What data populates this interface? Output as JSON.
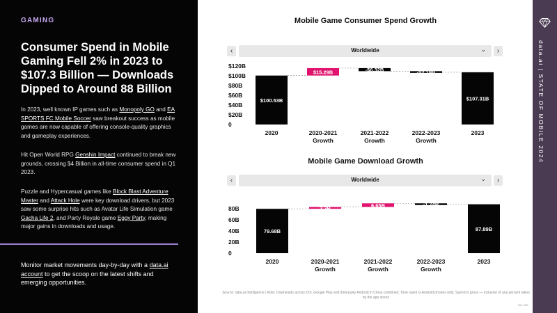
{
  "left_panel": {
    "section_tag": "GAMING",
    "headline": "Consumer Spend in Mobile Gaming Fell 2% in 2023 to $107.3 Billion — Downloads Dipped to Around 88 Billion",
    "p1_a": "In 2023, well known IP games such as ",
    "p1_link1": "Monopoly GO",
    "p1_b": " and ",
    "p1_link2": "EA SPORTS FC Mobile Soccer",
    "p1_c": " saw breakout success as mobile games are now capable of offering console-quality graphics and gameplay experiences.",
    "p2_a": "Hit Open World RPG ",
    "p2_link1": "Genshin Impact",
    "p2_b": " continued to break new grounds, crossing $4 Billion in all-time consumer spend in Q1 2023.",
    "p3_a": "Puzzle and Hypercasual games like ",
    "p3_link1": "Block Blast Adventure Master",
    "p3_b": " and ",
    "p3_link2": "Attack Hole",
    "p3_c": " were key download drivers, but 2023 saw some surprise hits such as Avatar Life Simulation game ",
    "p3_link3": "Gacha Life 2",
    "p3_d": ", and Party Royale game ",
    "p3_link4": "Eggy Party",
    "p3_e": ", making major gains in downloads and usage.",
    "cta_a": "Monitor market movements day-by-day with a ",
    "cta_link": "data.ai account",
    "cta_b": " to get the scoop on the latest shifts and emerging opportunities."
  },
  "rail": {
    "text": "data.ai | STATE OF MOBILE 2024",
    "logo_icon": "diamond-logo-icon"
  },
  "colors": {
    "accent": "#e0146e",
    "bar": "#050505",
    "rail": "#4a3a52",
    "section_tag": "#c9a9f5"
  },
  "spend_chart": {
    "title": "Mobile Game Consumer Spend Growth",
    "selector_value": "Worldwide",
    "prev_icon": "chevron-left-icon",
    "next_icon": "chevron-right-icon"
  },
  "download_chart": {
    "title": "Mobile Game Download Growth",
    "selector_value": "Worldwide",
    "prev_icon": "chevron-left-icon",
    "next_icon": "chevron-right-icon"
  },
  "chart_data": [
    {
      "type": "waterfall",
      "title": "Mobile Game Consumer Spend Growth",
      "y_ticks": [
        "0",
        "$20B",
        "$40B",
        "$60B",
        "$80B",
        "$100B",
        "$120B"
      ],
      "ylim": [
        0,
        120
      ],
      "categories": [
        "2020",
        "2020-2021 Growth",
        "2021-2022 Growth",
        "2022-2023 Growth",
        "2023"
      ],
      "steps": [
        {
          "kind": "total",
          "value": 100.53,
          "label": "$100.53B"
        },
        {
          "kind": "delta",
          "value": 15.29,
          "label": "$15.29B"
        },
        {
          "kind": "delta",
          "value": -6.32,
          "label": "-$6.32B"
        },
        {
          "kind": "delta",
          "value": -2.19,
          "label": "-$2.19B"
        },
        {
          "kind": "total",
          "value": 107.31,
          "label": "$107.31B"
        }
      ]
    },
    {
      "type": "waterfall",
      "title": "Mobile Game Download Growth",
      "y_ticks": [
        "0",
        "20B",
        "40B",
        "60B",
        "80B"
      ],
      "ylim": [
        0,
        90
      ],
      "categories": [
        "2020",
        "2020-2021 Growth",
        "2021-2022 Growth",
        "2022-2023 Growth",
        "2023"
      ],
      "steps": [
        {
          "kind": "total",
          "value": 79.68,
          "label": "79.68B"
        },
        {
          "kind": "delta",
          "value": 3.3,
          "label": "3.3B"
        },
        {
          "kind": "delta",
          "value": 6.65,
          "label": "6.65B"
        },
        {
          "kind": "delta",
          "value": -1.74,
          "label": "-1.74B"
        },
        {
          "kind": "total",
          "value": 87.89,
          "label": "87.89B"
        }
      ]
    }
  ],
  "footnote": "Source: data.ai Intelligence | Note: Downloads across iOS, Google Play and third-party Android in China combined; Time spent is Android phones only; Spend is gross — inclusive of any percent taken by the app stores",
  "page_number": "31 / 100"
}
